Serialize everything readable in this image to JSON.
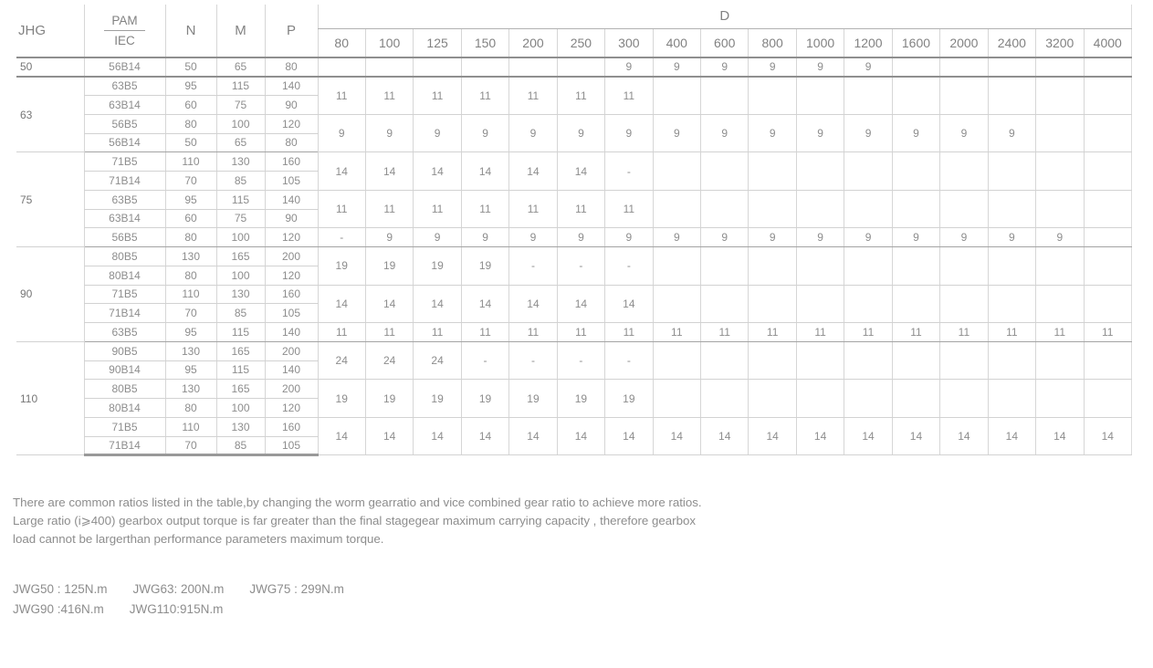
{
  "table": {
    "header": {
      "jhg": "JHG",
      "pam": "PAM",
      "iec": "IEC",
      "n": "N",
      "m": "M",
      "p": "P",
      "d": "D",
      "d_columns": [
        "80",
        "100",
        "125",
        "150",
        "200",
        "250",
        "300",
        "400",
        "600",
        "800",
        "1000",
        "1200",
        "1600",
        "2000",
        "2400",
        "3200",
        "4000"
      ]
    },
    "groups": [
      {
        "jhg": "50",
        "rows": [
          {
            "iec": "56B14",
            "n": "50",
            "m": "65",
            "p": "80"
          }
        ],
        "d_blocks": [
          {
            "span": 1,
            "values": [
              "",
              "",
              "",
              "",
              "",
              "",
              "9",
              "9",
              "9",
              "9",
              "9",
              "9",
              "",
              "",
              "",
              "",
              ""
            ]
          }
        ]
      },
      {
        "jhg": "63",
        "rows": [
          {
            "iec": "63B5",
            "n": "95",
            "m": "115",
            "p": "140"
          },
          {
            "iec": "63B14",
            "n": "60",
            "m": "75",
            "p": "90"
          },
          {
            "iec": "56B5",
            "n": "80",
            "m": "100",
            "p": "120"
          },
          {
            "iec": "56B14",
            "n": "50",
            "m": "65",
            "p": "80"
          }
        ],
        "d_blocks": [
          {
            "span": 2,
            "values": [
              "11",
              "11",
              "11",
              "11",
              "11",
              "11",
              "11",
              "",
              "",
              "",
              "",
              "",
              "",
              "",
              "",
              "",
              ""
            ]
          },
          {
            "span": 2,
            "values": [
              "9",
              "9",
              "9",
              "9",
              "9",
              "9",
              "9",
              "9",
              "9",
              "9",
              "9",
              "9",
              "9",
              "9",
              "9",
              "",
              ""
            ]
          }
        ]
      },
      {
        "jhg": "75",
        "rows": [
          {
            "iec": "71B5",
            "n": "110",
            "m": "130",
            "p": "160"
          },
          {
            "iec": "71B14",
            "n": "70",
            "m": "85",
            "p": "105"
          },
          {
            "iec": "63B5",
            "n": "95",
            "m": "115",
            "p": "140"
          },
          {
            "iec": "63B14",
            "n": "60",
            "m": "75",
            "p": "90"
          },
          {
            "iec": "56B5",
            "n": "80",
            "m": "100",
            "p": "120"
          }
        ],
        "d_blocks": [
          {
            "span": 2,
            "values": [
              "14",
              "14",
              "14",
              "14",
              "14",
              "14",
              "-",
              "",
              "",
              "",
              "",
              "",
              "",
              "",
              "",
              "",
              ""
            ]
          },
          {
            "span": 2,
            "values": [
              "11",
              "11",
              "11",
              "11",
              "11",
              "11",
              "11",
              "",
              "",
              "",
              "",
              "",
              "",
              "",
              "",
              "",
              ""
            ]
          },
          {
            "span": 1,
            "values": [
              "-",
              "9",
              "9",
              "9",
              "9",
              "9",
              "9",
              "9",
              "9",
              "9",
              "9",
              "9",
              "9",
              "9",
              "9",
              "9",
              ""
            ]
          }
        ]
      },
      {
        "jhg": "90",
        "rows": [
          {
            "iec": "80B5",
            "n": "130",
            "m": "165",
            "p": "200"
          },
          {
            "iec": "80B14",
            "n": "80",
            "m": "100",
            "p": "120"
          },
          {
            "iec": "71B5",
            "n": "110",
            "m": "130",
            "p": "160"
          },
          {
            "iec": "71B14",
            "n": "70",
            "m": "85",
            "p": "105"
          },
          {
            "iec": "63B5",
            "n": "95",
            "m": "115",
            "p": "140"
          }
        ],
        "d_blocks": [
          {
            "span": 2,
            "values": [
              "19",
              "19",
              "19",
              "19",
              "-",
              "-",
              "-",
              "",
              "",
              "",
              "",
              "",
              "",
              "",
              "",
              "",
              ""
            ]
          },
          {
            "span": 2,
            "values": [
              "14",
              "14",
              "14",
              "14",
              "14",
              "14",
              "14",
              "",
              "",
              "",
              "",
              "",
              "",
              "",
              "",
              "",
              ""
            ]
          },
          {
            "span": 1,
            "values": [
              "11",
              "11",
              "11",
              "11",
              "11",
              "11",
              "11",
              "11",
              "11",
              "11",
              "11",
              "11",
              "11",
              "11",
              "11",
              "11",
              "11"
            ]
          }
        ]
      },
      {
        "jhg": "110",
        "rows": [
          {
            "iec": "90B5",
            "n": "130",
            "m": "165",
            "p": "200"
          },
          {
            "iec": "90B14",
            "n": "95",
            "m": "115",
            "p": "140"
          },
          {
            "iec": "80B5",
            "n": "130",
            "m": "165",
            "p": "200"
          },
          {
            "iec": "80B14",
            "n": "80",
            "m": "100",
            "p": "120"
          },
          {
            "iec": "71B5",
            "n": "110",
            "m": "130",
            "p": "160"
          },
          {
            "iec": "71B14",
            "n": "70",
            "m": "85",
            "p": "105"
          }
        ],
        "d_blocks": [
          {
            "span": 2,
            "values": [
              "24",
              "24",
              "24",
              "-",
              "-",
              "-",
              "-",
              "",
              "",
              "",
              "",
              "",
              "",
              "",
              "",
              "",
              ""
            ]
          },
          {
            "span": 2,
            "values": [
              "19",
              "19",
              "19",
              "19",
              "19",
              "19",
              "19",
              "",
              "",
              "",
              "",
              "",
              "",
              "",
              "",
              "",
              ""
            ]
          },
          {
            "span": 2,
            "values": [
              "14",
              "14",
              "14",
              "14",
              "14",
              "14",
              "14",
              "14",
              "14",
              "14",
              "14",
              "14",
              "14",
              "14",
              "14",
              "14",
              "14"
            ]
          }
        ]
      }
    ]
  },
  "notes": {
    "paragraph_lines": [
      "There are common ratios listed in the table,by changing the worm gearratio and vice combined gear ratio to achieve more ratios.",
      "Large ratio (i⩾400) gearbox output torque is far greater than the final stagegear maximum carrying capacity , therefore gearbox",
      "load cannot be largerthan performance parameters maximum torque."
    ],
    "torque_lines": [
      [
        "JWG50 : 125N.m",
        "JWG63: 200N.m",
        "JWG75 : 299N.m"
      ],
      [
        "JWG90 :416N.m",
        "JWG110:915N.m"
      ]
    ]
  },
  "colors": {
    "text": "#8d8d8d",
    "line_light": "#d6d6d6",
    "line_medium": "#a4a4a4",
    "line_dark": "#8f8f8f"
  }
}
